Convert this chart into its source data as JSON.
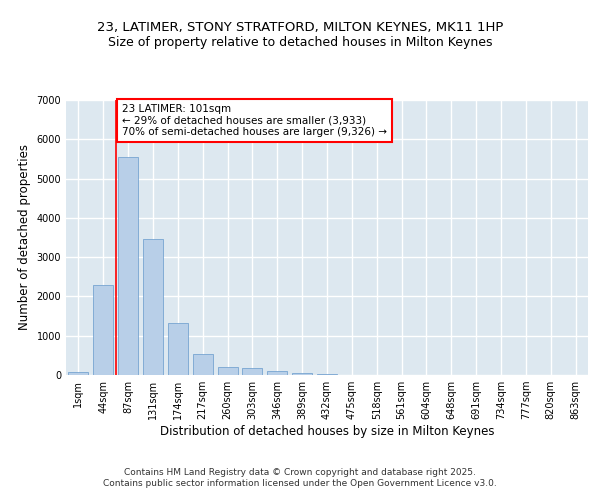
{
  "title_line1": "23, LATIMER, STONY STRATFORD, MILTON KEYNES, MK11 1HP",
  "title_line2": "Size of property relative to detached houses in Milton Keynes",
  "xlabel": "Distribution of detached houses by size in Milton Keynes",
  "ylabel": "Number of detached properties",
  "categories": [
    "1sqm",
    "44sqm",
    "87sqm",
    "131sqm",
    "174sqm",
    "217sqm",
    "260sqm",
    "303sqm",
    "346sqm",
    "389sqm",
    "432sqm",
    "475sqm",
    "518sqm",
    "561sqm",
    "604sqm",
    "648sqm",
    "691sqm",
    "734sqm",
    "777sqm",
    "820sqm",
    "863sqm"
  ],
  "values": [
    70,
    2300,
    5550,
    3450,
    1320,
    530,
    210,
    175,
    90,
    55,
    30,
    0,
    0,
    0,
    0,
    0,
    0,
    0,
    0,
    0,
    0
  ],
  "bar_color": "#b8cfe8",
  "bar_edge_color": "#6699cc",
  "vline_color": "red",
  "vline_index": 2,
  "annotation_text": "23 LATIMER: 101sqm\n← 29% of detached houses are smaller (3,933)\n70% of semi-detached houses are larger (9,326) →",
  "annotation_box_color": "white",
  "annotation_box_edge_color": "red",
  "ylim": [
    0,
    7000
  ],
  "yticks": [
    0,
    1000,
    2000,
    3000,
    4000,
    5000,
    6000,
    7000
  ],
  "background_color": "#dde8f0",
  "grid_color": "white",
  "footer_line1": "Contains HM Land Registry data © Crown copyright and database right 2025.",
  "footer_line2": "Contains public sector information licensed under the Open Government Licence v3.0.",
  "title_fontsize": 9.5,
  "subtitle_fontsize": 9,
  "axis_label_fontsize": 8.5,
  "tick_fontsize": 7,
  "annotation_fontsize": 7.5,
  "footer_fontsize": 6.5
}
